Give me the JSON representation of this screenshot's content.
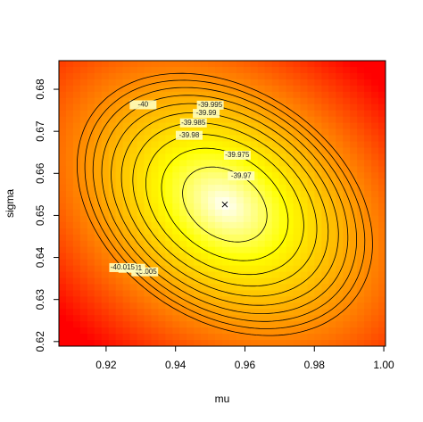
{
  "chart_data": {
    "type": "contour",
    "xlabel": "mu",
    "ylabel": "sigma",
    "xlim": [
      0.9064,
      1.0005
    ],
    "xticks": [
      0.92,
      0.94,
      0.96,
      0.98,
      {
        "value": 1.0,
        "label": "1.00"
      }
    ],
    "ylim": [
      0.6189,
      0.6868
    ],
    "yticks": [
      0.62,
      0.63,
      0.64,
      0.65,
      0.66,
      0.67,
      0.68
    ],
    "maximum": {
      "x": 0.9542,
      "y": 0.6526
    },
    "levels": [
      -39.97,
      -39.975,
      -39.98,
      -39.985,
      -39.99,
      -39.995,
      -40,
      -40.005,
      -40.01,
      -40.015
    ]
  }
}
